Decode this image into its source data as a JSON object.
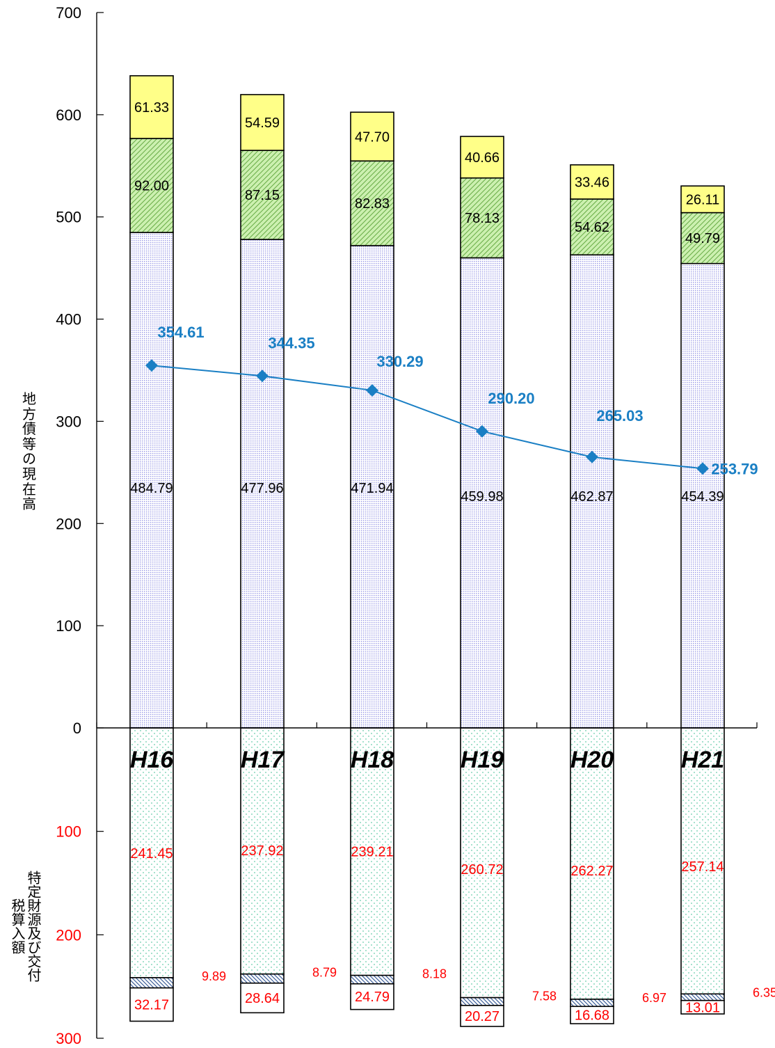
{
  "chart_data": {
    "type": "bar",
    "subtype": "stacked-bar-with-line-and-mirrored-lower-panel",
    "categories": [
      "H16",
      "H17",
      "H18",
      "H19",
      "H20",
      "H21"
    ],
    "upper": {
      "ylabel": "地方債等の現在高",
      "ylim": [
        0,
        700
      ],
      "yticks": [
        "0",
        "100",
        "200",
        "300",
        "400",
        "500",
        "600",
        "700"
      ],
      "series": [
        {
          "values": [
            484.79,
            477.96,
            471.94,
            459.98,
            462.87,
            454.39
          ],
          "labels": [
            "484.79",
            "477.96",
            "471.94",
            "459.98",
            "462.87",
            "454.39"
          ],
          "color": "#ccccff"
        },
        {
          "values": [
            92.0,
            87.15,
            82.83,
            78.13,
            54.62,
            49.79
          ],
          "labels": [
            "92.00",
            "87.15",
            "82.83",
            "78.13",
            "54.62",
            "49.79"
          ],
          "color": "#99cc66"
        },
        {
          "values": [
            61.33,
            54.59,
            47.7,
            40.66,
            33.46,
            26.11
          ],
          "labels": [
            "61.33",
            "54.59",
            "47.70",
            "40.66",
            "33.46",
            "26.11"
          ],
          "color": "#ffff80"
        }
      ],
      "line": {
        "values": [
          354.61,
          344.35,
          330.29,
          290.2,
          265.03,
          253.79
        ],
        "labels": [
          "354.61",
          "344.35",
          "330.29",
          "290.20",
          "265.03",
          "253.79"
        ],
        "color": "#1a7fc4"
      }
    },
    "lower": {
      "ylabel": "特定財源及び交付税算入額",
      "ylim": [
        0,
        300
      ],
      "yticks": [
        "100",
        "200",
        "300"
      ],
      "tick_color": "#ff0000",
      "series": [
        {
          "values": [
            241.45,
            237.92,
            239.21,
            260.72,
            262.27,
            257.14
          ],
          "labels": [
            "241.45",
            "237.92",
            "239.21",
            "260.72",
            "262.27",
            "257.14"
          ],
          "color": "#99e6cc"
        },
        {
          "values": [
            9.89,
            8.79,
            8.18,
            7.58,
            6.97,
            6.35
          ],
          "labels": [
            "9.89",
            "8.79",
            "8.18",
            "7.58",
            "6.97",
            "6.35"
          ],
          "color": "#3366aa"
        },
        {
          "values": [
            32.17,
            28.64,
            24.79,
            20.27,
            16.68,
            13.01
          ],
          "labels": [
            "32.17",
            "28.64",
            "24.79",
            "20.27",
            "16.68",
            "13.01"
          ],
          "color": "#ffffff"
        }
      ],
      "label_color": "#ff0000"
    }
  }
}
